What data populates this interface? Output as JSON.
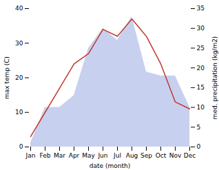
{
  "chart_data": {
    "type": "line",
    "categories": [
      "Jan",
      "Feb",
      "Mar",
      "Apr",
      "May",
      "Jun",
      "Jul",
      "Aug",
      "Sep",
      "Oct",
      "Nov",
      "Dec"
    ],
    "xlabel": "date (month)",
    "ylabel": "max temp (C)",
    "y2label": "med. precipitation (kg/m2)",
    "ylim": [
      0,
      40
    ],
    "yticks": [
      0,
      10,
      20,
      30,
      40
    ],
    "y2lim": [
      0,
      35
    ],
    "y2ticks": [
      0,
      5,
      10,
      15,
      20,
      25,
      30,
      35
    ],
    "grid": false,
    "series": [
      {
        "type": "area",
        "axis": "y2",
        "color": "#c8d0f0",
        "values": [
          1,
          10,
          10,
          13,
          25,
          30,
          27,
          33,
          19,
          18,
          18,
          10
        ]
      },
      {
        "type": "line",
        "color": "#c0392b",
        "values": [
          3,
          10,
          17,
          24,
          27,
          34,
          32,
          37,
          32,
          24,
          13,
          11
        ]
      }
    ]
  }
}
